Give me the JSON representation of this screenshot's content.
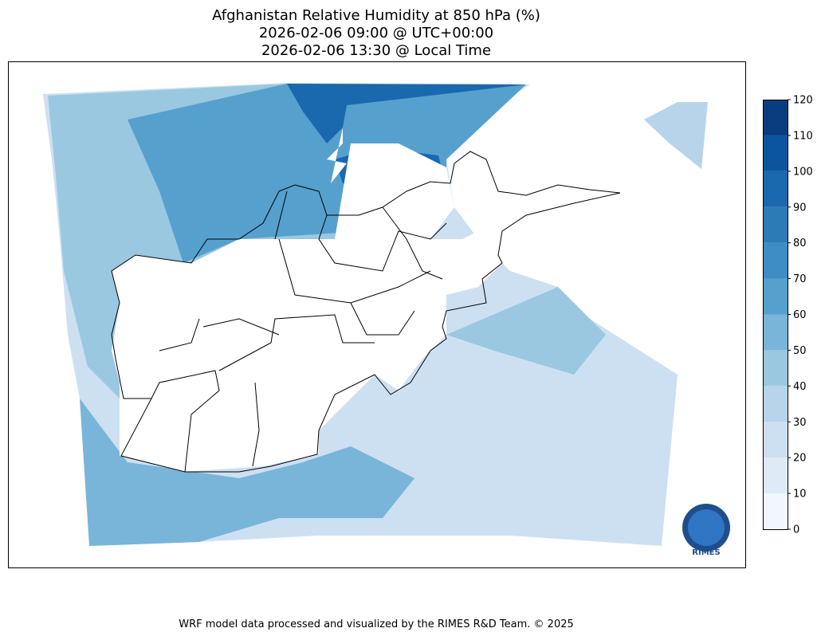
{
  "title": [
    "Afghanistan Relative Humidity at 850 hPa (%)",
    "2026-02-06 09:00 @ UTC+00:00",
    "2026-02-06 13:30 @ Local Time"
  ],
  "colorbar": {
    "ticks": [
      0,
      10,
      20,
      30,
      40,
      50,
      60,
      70,
      80,
      90,
      100,
      110,
      120
    ],
    "colors": [
      "#f1f7fd",
      "#deebf7",
      "#cde0f1",
      "#b7d4ea",
      "#9ac8e0",
      "#78b5d9",
      "#56a0ce",
      "#3d8dc3",
      "#2c7bb6",
      "#1a68ae",
      "#0b559f",
      "#083d7f"
    ]
  },
  "logo": "RIMES",
  "footer": "WRF model data processed and visualized by the RIMES R&D Team. © 2025"
}
